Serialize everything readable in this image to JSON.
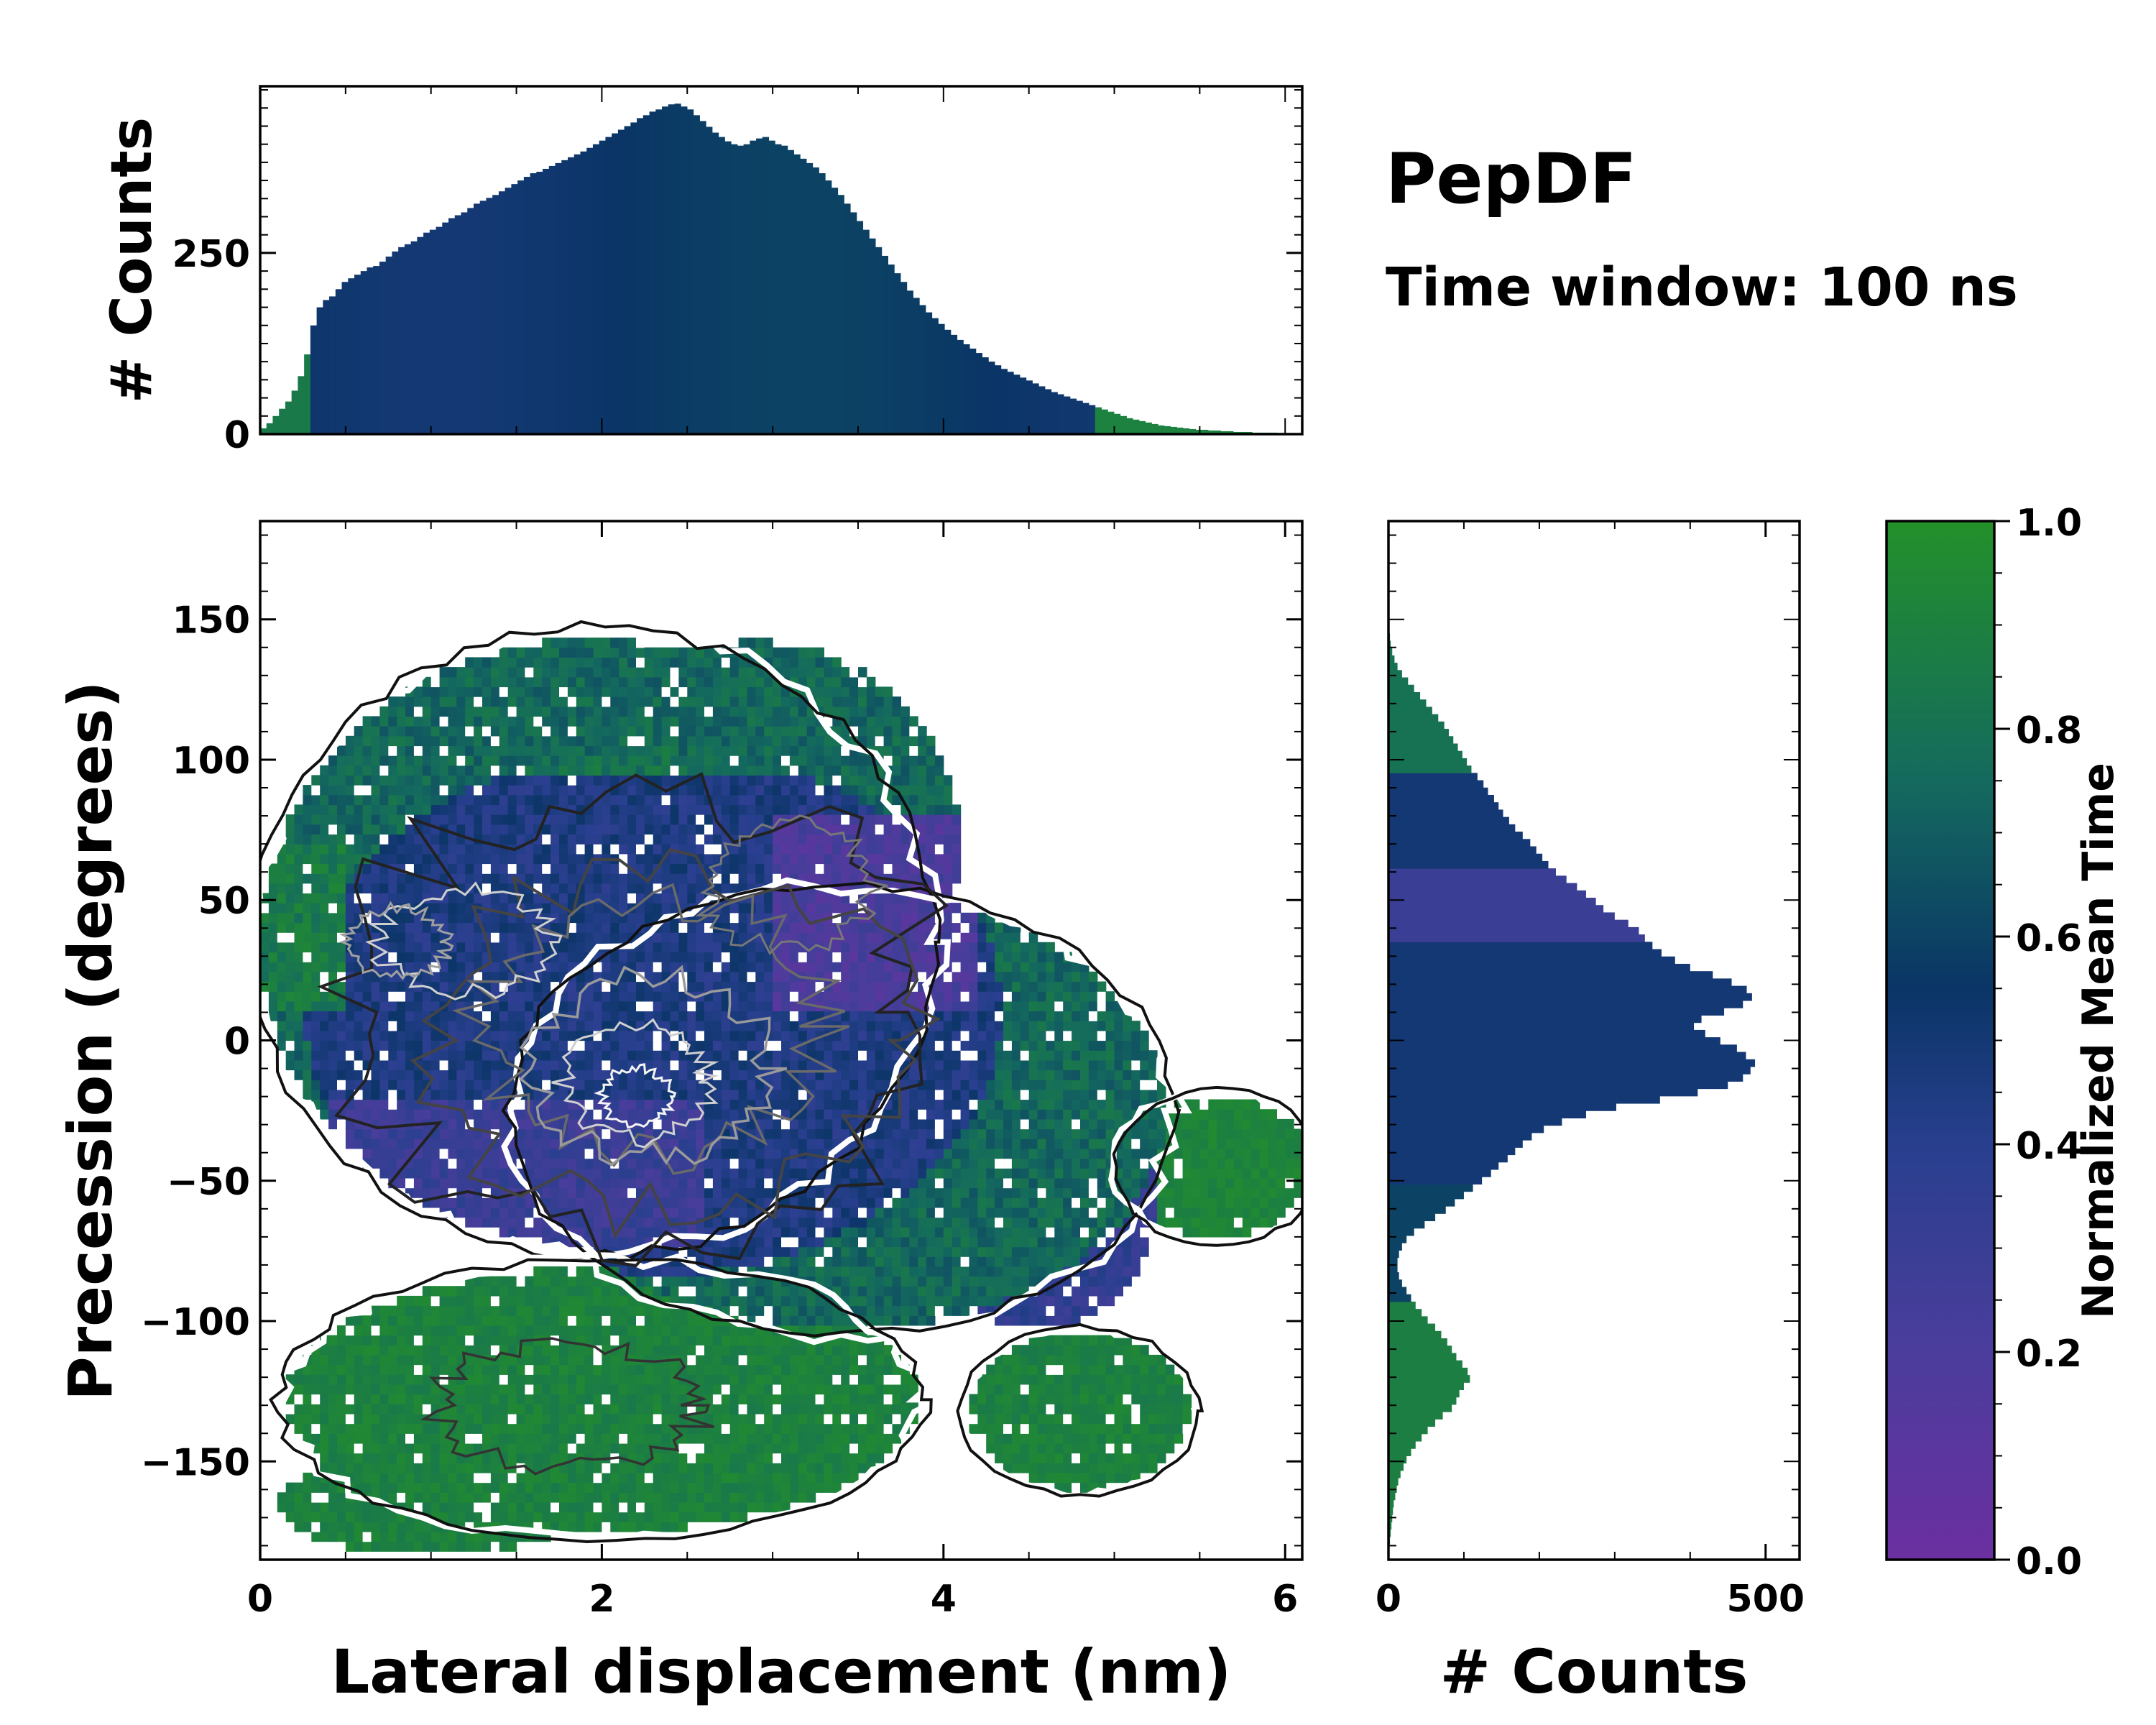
{
  "title": "PepDF",
  "subtitle": "Time window: 100 ns",
  "colors": {
    "cmap_low": "#6b2fa0",
    "cmap_mid": "#0a3566",
    "cmap_high": "#23902a"
  },
  "chart_data": [
    {
      "id": "joint",
      "type": "heatmap",
      "xlabel": "Lateral displacement (nm)",
      "ylabel": "Precession (degrees)",
      "xlim": [
        0,
        6.1
      ],
      "ylim": [
        -185,
        185
      ],
      "xticks": [
        "0",
        "2",
        "4",
        "6"
      ],
      "yticks": [
        "−150",
        "−100",
        "−50",
        "0",
        "50",
        "100",
        "150"
      ],
      "xtick_values": [
        0,
        2,
        4,
        6
      ],
      "ytick_values": [
        -150,
        -100,
        -50,
        0,
        50,
        100,
        150
      ],
      "color_by": "Normalized Mean Time",
      "contours": true,
      "regions": [
        {
          "name": "main",
          "x": [
            0,
            5.3
          ],
          "y": [
            -100,
            142
          ],
          "mean_time": 0.45
        },
        {
          "name": "lower",
          "x": [
            0.2,
            4.2
          ],
          "y": [
            -178,
            -80
          ],
          "mean_time": 0.9
        },
        {
          "name": "right-lower",
          "x": [
            4.1,
            5.5
          ],
          "y": [
            -165,
            -105
          ],
          "mean_time": 0.9
        },
        {
          "name": "right-tail",
          "x": [
            5.1,
            6.1
          ],
          "y": [
            -70,
            -20
          ],
          "mean_time": 0.92
        }
      ]
    },
    {
      "id": "x-marginal",
      "type": "bar",
      "ylabel": "# Counts",
      "yticks": [
        "0",
        "250"
      ],
      "ytick_values": [
        0,
        250
      ],
      "ylim": [
        0,
        480
      ],
      "x_range": [
        0,
        6.1
      ],
      "values": [
        8,
        15,
        25,
        35,
        45,
        60,
        80,
        110,
        150,
        175,
        185,
        190,
        200,
        210,
        215,
        220,
        225,
        230,
        232,
        238,
        245,
        252,
        258,
        262,
        266,
        272,
        278,
        282,
        286,
        292,
        298,
        302,
        306,
        312,
        318,
        322,
        326,
        330,
        335,
        340,
        345,
        350,
        355,
        360,
        362,
        366,
        370,
        374,
        378,
        382,
        386,
        390,
        395,
        400,
        405,
        410,
        415,
        420,
        425,
        430,
        436,
        440,
        445,
        448,
        452,
        455,
        456,
        452,
        448,
        440,
        432,
        424,
        416,
        410,
        404,
        400,
        398,
        400,
        405,
        408,
        410,
        405,
        400,
        398,
        392,
        386,
        380,
        374,
        368,
        360,
        350,
        340,
        330,
        318,
        306,
        294,
        282,
        270,
        258,
        246,
        234,
        222,
        210,
        198,
        188,
        178,
        168,
        160,
        152,
        144,
        137,
        130,
        124,
        118,
        112,
        106,
        100,
        95,
        90,
        86,
        82,
        78,
        74,
        70,
        66,
        62,
        58,
        55,
        52,
        49,
        46,
        43,
        40,
        37,
        34,
        31,
        28,
        25,
        22,
        20,
        18,
        16,
        14,
        12,
        11,
        10,
        9,
        8,
        7,
        6,
        6,
        5,
        5,
        4,
        4,
        3,
        3,
        3,
        2,
        2,
        2,
        2,
        1,
        1,
        1,
        1
      ]
    },
    {
      "id": "y-marginal",
      "type": "bar",
      "orientation": "horizontal",
      "xlabel": "# Counts",
      "xticks": [
        "0",
        "500"
      ],
      "xtick_values": [
        0,
        500
      ],
      "xlim": [
        0,
        545
      ],
      "y_range": [
        -185,
        185
      ],
      "values": [
        1,
        2,
        3,
        4,
        5,
        6,
        7,
        9,
        11,
        13,
        16,
        20,
        24,
        30,
        36,
        44,
        52,
        62,
        72,
        84,
        90,
        94,
        100,
        108,
        105,
        98,
        90,
        84,
        78,
        70,
        62,
        52,
        44,
        36,
        30,
        24,
        18,
        14,
        12,
        12,
        14,
        18,
        24,
        34,
        48,
        62,
        76,
        88,
        100,
        112,
        124,
        136,
        146,
        158,
        168,
        178,
        190,
        206,
        230,
        262,
        302,
        360,
        410,
        450,
        470,
        480,
        486,
        474,
        462,
        440,
        420,
        405,
        415,
        445,
        470,
        482,
        475,
        455,
        430,
        400,
        380,
        362,
        350,
        340,
        332,
        318,
        300,
        285,
        275,
        262,
        250,
        236,
        222,
        212,
        204,
        196,
        188,
        178,
        168,
        160,
        152,
        146,
        140,
        132,
        126,
        118,
        110,
        104,
        98,
        92,
        86,
        80,
        74,
        66,
        58,
        50,
        42,
        34,
        26,
        18,
        12,
        8,
        5,
        3,
        2
      ]
    },
    {
      "id": "colorbar",
      "type": "colorbar",
      "label": "Normalized Mean Time",
      "range": [
        0,
        1
      ],
      "ticks": [
        "0.0",
        "0.2",
        "0.4",
        "0.6",
        "0.8",
        "1.0"
      ],
      "tick_values": [
        0,
        0.2,
        0.4,
        0.6,
        0.8,
        1.0
      ]
    }
  ]
}
